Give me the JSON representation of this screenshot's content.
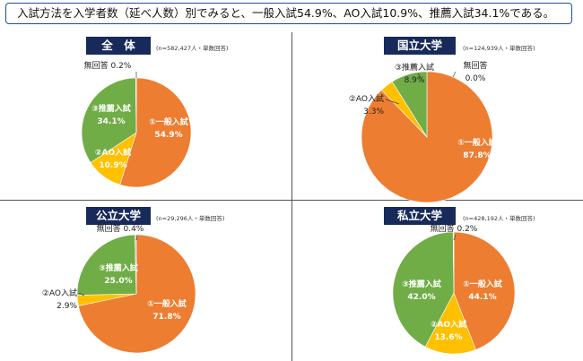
{
  "headline": "入試方法を入学者数（延べ人数）別でみると、一般入試54.9%、AO入試10.9%、推薦入試34.1%である。",
  "colors": {
    "general": "#ed7d31",
    "ao": "#ffc000",
    "suisen": "#70ad47",
    "noanswer": "#b0b0b0"
  },
  "chart_data": [
    {
      "type": "pie",
      "title": "全　体",
      "note": "(n=582,427人・単数回答)",
      "slices": [
        {
          "label": "①一般入試",
          "value": 54.9,
          "value_text": "54.9%"
        },
        {
          "label": "②AO入試",
          "value": 10.9,
          "value_text": "10.9%"
        },
        {
          "label": "③推薦入試",
          "value": 34.1,
          "value_text": "34.1%"
        },
        {
          "label": "無回答",
          "value": 0.2,
          "value_text": "0.2%"
        }
      ]
    },
    {
      "type": "pie",
      "title": "国立大学",
      "note": "(n=124,939人・単数回答)",
      "slices": [
        {
          "label": "①一般入試",
          "value": 87.8,
          "value_text": "87.8%"
        },
        {
          "label": "②AO入試",
          "value": 3.3,
          "value_text": "3.3%"
        },
        {
          "label": "③推薦入試",
          "value": 8.9,
          "value_text": "8.9%"
        },
        {
          "label": "無回答",
          "value": 0.0,
          "value_text": "0.0%"
        }
      ]
    },
    {
      "type": "pie",
      "title": "公立大学",
      "note": "(n=29,296人・単数回答)",
      "slices": [
        {
          "label": "①一般入試",
          "value": 71.8,
          "value_text": "71.8%"
        },
        {
          "label": "②AO入試",
          "value": 2.9,
          "value_text": "2.9%"
        },
        {
          "label": "③推薦入試",
          "value": 25.0,
          "value_text": "25.0%"
        },
        {
          "label": "無回答",
          "value": 0.4,
          "value_text": "0.4%"
        }
      ]
    },
    {
      "type": "pie",
      "title": "私立大学",
      "note": "(n=428,192人・単数回答)",
      "slices": [
        {
          "label": "①一般入試",
          "value": 44.1,
          "value_text": "44.1%"
        },
        {
          "label": "②AO入試",
          "value": 13.6,
          "value_text": "13.6%"
        },
        {
          "label": "③推薦入試",
          "value": 42.0,
          "value_text": "42.0%"
        },
        {
          "label": "無回答",
          "value": 0.2,
          "value_text": "0.2%"
        }
      ]
    }
  ]
}
